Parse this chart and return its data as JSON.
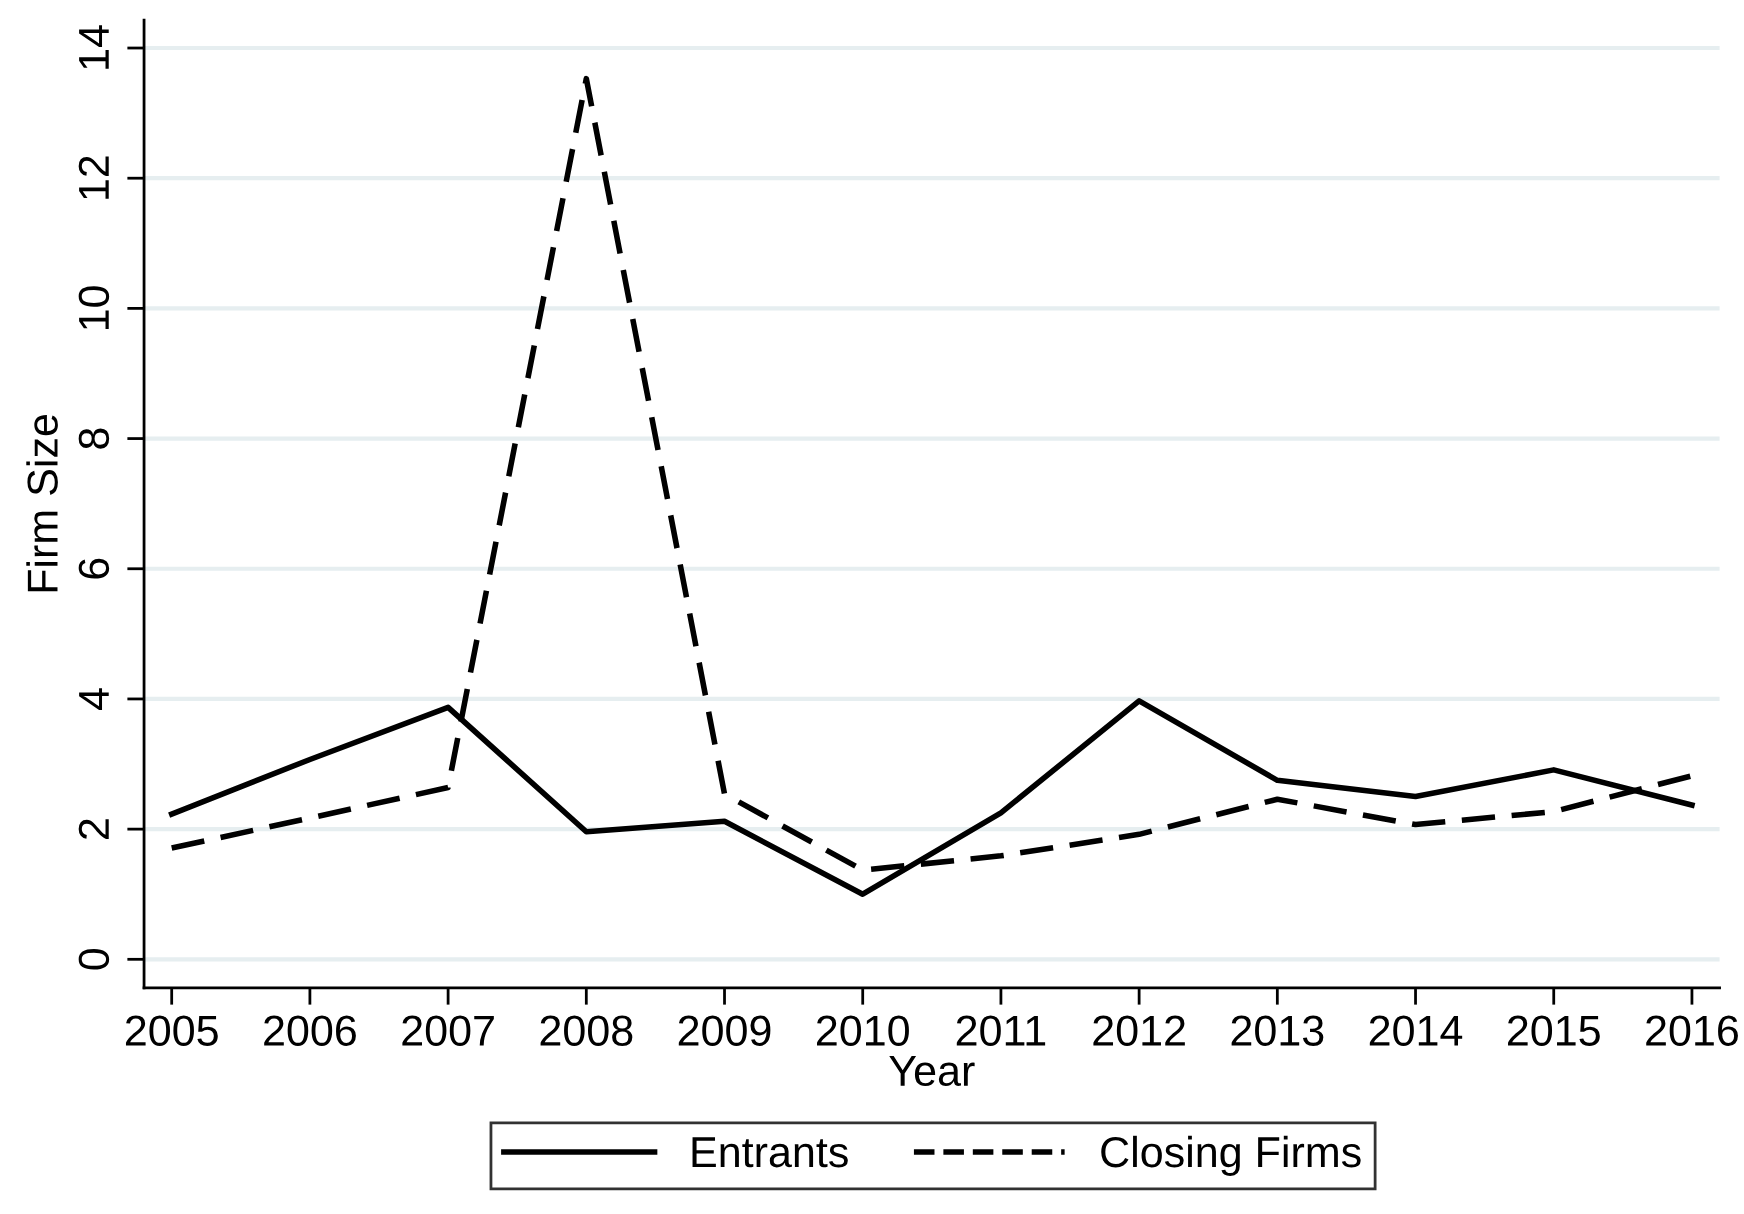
{
  "chart_data": {
    "type": "line",
    "xlabel": "Year",
    "ylabel": "Firm Size",
    "x": [
      2005,
      2006,
      2007,
      2008,
      2009,
      2010,
      2011,
      2012,
      2013,
      2014,
      2015,
      2016
    ],
    "series": [
      {
        "name": "Entrants",
        "color": "#000000",
        "line_style": "solid",
        "values": [
          2.23,
          3.07,
          3.87,
          1.96,
          2.12,
          1.0,
          2.25,
          3.97,
          2.75,
          2.5,
          2.91,
          2.37
        ]
      },
      {
        "name": "Closing Firms",
        "color": "#000000",
        "line_style": "dashed",
        "values": [
          1.71,
          2.17,
          2.64,
          13.53,
          2.54,
          1.37,
          1.59,
          1.92,
          2.46,
          2.07,
          2.27,
          2.82
        ]
      }
    ],
    "xlim": [
      2004.8,
      2016.2
    ],
    "xticks": [
      2005,
      2006,
      2007,
      2008,
      2009,
      2010,
      2011,
      2012,
      2013,
      2014,
      2015,
      2016
    ],
    "ylim": [
      -0.44,
      14.43
    ],
    "yticks": [
      0,
      2,
      4,
      6,
      8,
      10,
      12,
      14
    ],
    "grid": "y",
    "legend": "bottom",
    "marker": "none"
  }
}
